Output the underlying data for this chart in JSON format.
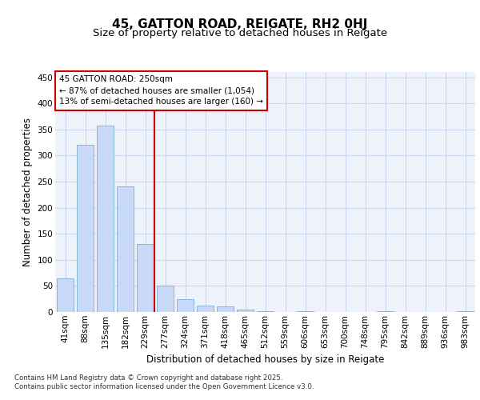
{
  "title": "45, GATTON ROAD, REIGATE, RH2 0HJ",
  "subtitle": "Size of property relative to detached houses in Reigate",
  "xlabel": "Distribution of detached houses by size in Reigate",
  "ylabel": "Number of detached properties",
  "categories": [
    "41sqm",
    "88sqm",
    "135sqm",
    "182sqm",
    "229sqm",
    "277sqm",
    "324sqm",
    "371sqm",
    "418sqm",
    "465sqm",
    "512sqm",
    "559sqm",
    "606sqm",
    "653sqm",
    "700sqm",
    "748sqm",
    "795sqm",
    "842sqm",
    "889sqm",
    "936sqm",
    "983sqm"
  ],
  "values": [
    65,
    320,
    358,
    240,
    130,
    50,
    25,
    13,
    10,
    4,
    1,
    0,
    1,
    0,
    0,
    0,
    1,
    0,
    0,
    0,
    1
  ],
  "bar_color": "#c9daf8",
  "bar_edge_color": "#7bafd4",
  "grid_color": "#c8d8f0",
  "background_color": "#eef2fa",
  "annotation_line1": "45 GATTON ROAD: 250sqm",
  "annotation_line2": "← 87% of detached houses are smaller (1,054)",
  "annotation_line3": "13% of semi-detached houses are larger (160) →",
  "annotation_box_color": "#cc0000",
  "ref_line_x": 4.45,
  "ylim": [
    0,
    460
  ],
  "yticks": [
    0,
    50,
    100,
    150,
    200,
    250,
    300,
    350,
    400,
    450
  ],
  "footer": "Contains HM Land Registry data © Crown copyright and database right 2025.\nContains public sector information licensed under the Open Government Licence v3.0.",
  "title_fontsize": 11,
  "subtitle_fontsize": 9.5,
  "axis_label_fontsize": 8.5,
  "tick_fontsize": 7.5,
  "annotation_fontsize": 7.5,
  "footer_fontsize": 6.2
}
